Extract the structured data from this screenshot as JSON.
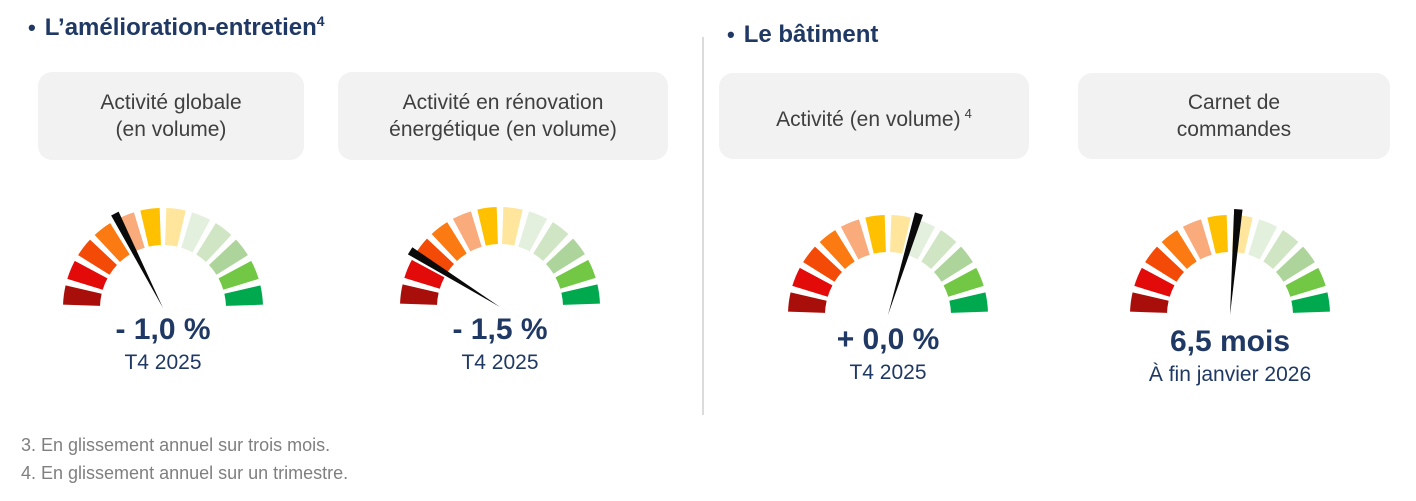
{
  "sections": [
    {
      "bullet": "•",
      "title": "L’amélioration-entretien",
      "sup": "4"
    },
    {
      "bullet": "•",
      "title": "Le bâtiment"
    }
  ],
  "chart_data": {
    "type": "gauge",
    "arc_span_deg": 180,
    "segments": 12,
    "scale_note": "qualitative red (bad) to green (good), 12 colored segments",
    "segment_colors": [
      "#A80F0A",
      "#E30A0A",
      "#F44A08",
      "#FB7A12",
      "#F9AB7C",
      "#FFC000",
      "#FFE69C",
      "#E4F0DE",
      "#D0E5C3",
      "#ADD49B",
      "#72C844",
      "#00A94E"
    ],
    "gauges": [
      {
        "section": "L’amélioration-entretien",
        "label_lines": [
          "Activité globale",
          "(en volume)"
        ],
        "value": "- 1,0 %",
        "numeric_value": -1.0,
        "unit": "%",
        "period": "T4 2025",
        "needle_angle_deg": 117
      },
      {
        "section": "L’amélioration-entretien",
        "label_lines": [
          "Activité en rénovation",
          "énergétique (en volume)"
        ],
        "value": "- 1,5 %",
        "numeric_value": -1.5,
        "unit": "%",
        "period": "T4 2025",
        "needle_angle_deg": 148
      },
      {
        "section": "Le bâtiment",
        "label_lines": [
          "Activité (en volume)"
        ],
        "label_sup": "4",
        "value": "+ 0,0 %",
        "numeric_value": 0.0,
        "unit": "%",
        "period": "T4 2025",
        "needle_angle_deg": 73
      },
      {
        "section": "Le bâtiment",
        "label_lines": [
          "Carnet de",
          "commandes"
        ],
        "value": "6,5 mois",
        "numeric_value": 6.5,
        "unit": "mois",
        "period": "À fin janvier 2026",
        "needle_angle_deg": 85.5
      }
    ]
  },
  "palette": {
    "title_color": "#1F3864",
    "value_color": "#1F3864",
    "label_box_bg": "#F2F2F2",
    "label_text_color": "#3F3F3F",
    "footnote_color": "#7F7F7F",
    "divider_color": "#DBDBDB",
    "needle_color": "#0A0A0A"
  },
  "footnotes": [
    "3. En glissement annuel sur trois mois.",
    "4. En glissement annuel sur un trimestre."
  ]
}
